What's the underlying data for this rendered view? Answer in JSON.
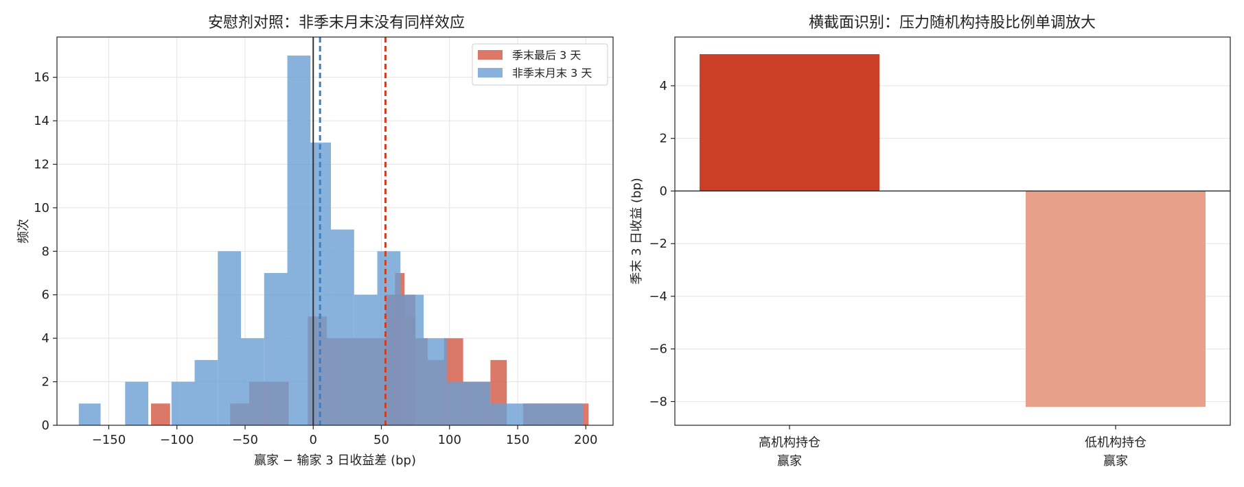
{
  "chart_data": [
    {
      "type": "histogram",
      "title": "安慰剂对照：非季末月末没有同样效应",
      "xlabel": "赢家 − 输家 3 日收益差 (bp)",
      "ylabel": "频次",
      "xlim": [
        -188,
        220
      ],
      "ylim": [
        0,
        17.85
      ],
      "xticks": [
        -150,
        -100,
        -50,
        0,
        50,
        100,
        150,
        200
      ],
      "yticks": [
        0,
        2,
        4,
        6,
        8,
        10,
        12,
        14,
        16
      ],
      "grid": true,
      "legend_position": "top-right",
      "vline_zero": 0,
      "series": [
        {
          "name": "季末最后 3 天",
          "color": "#d6604d",
          "mean_line": 53,
          "bins": [
            [
              -119,
              -105,
              1
            ],
            [
              -61,
              -47,
              1
            ],
            [
              -47,
              -18,
              2
            ],
            [
              -4,
              10,
              5
            ],
            [
              10,
              53,
              4
            ],
            [
              53,
              67,
              6
            ],
            [
              53,
              67,
              6
            ],
            [
              67,
              75,
              6
            ],
            [
              53,
              60,
              5
            ],
            [
              60,
              67,
              7
            ],
            [
              67,
              75,
              5
            ],
            [
              75,
              84,
              4
            ],
            [
              84,
              96,
              3
            ],
            [
              96,
              110,
              4
            ],
            [
              110,
              130,
              2
            ],
            [
              130,
              142,
              3
            ],
            [
              142,
              154,
              0
            ],
            [
              154,
              166,
              1
            ],
            [
              166,
              182,
              1
            ],
            [
              182,
              200,
              1
            ],
            [
              200,
              202,
              1
            ]
          ]
        },
        {
          "name": "非季末月末 3 天",
          "color": "#6a9fd2",
          "mean_line": 5,
          "bins": [
            [
              -172,
              -156,
              1
            ],
            [
              -138,
              -121,
              2
            ],
            [
              -104,
              -87,
              2
            ],
            [
              -87,
              -70,
              3
            ],
            [
              -70,
              -53,
              8
            ],
            [
              -53,
              -36,
              4
            ],
            [
              -36,
              -19,
              7
            ],
            [
              -19,
              -2,
              17
            ],
            [
              -2,
              13,
              13
            ],
            [
              13,
              30,
              9
            ],
            [
              30,
              47,
              6
            ],
            [
              47,
              64,
              8
            ],
            [
              64,
              81,
              6
            ],
            [
              81,
              98,
              4
            ],
            [
              98,
              115,
              2
            ],
            [
              115,
              130,
              2
            ],
            [
              130,
              149,
              1
            ],
            [
              149,
              164,
              1
            ],
            [
              164,
              181,
              1
            ],
            [
              181,
              198,
              1
            ]
          ]
        }
      ]
    },
    {
      "type": "bar",
      "title": "横截面识别：压力随机构持股比例单调放大",
      "ylabel": "季末 3 日收益 (bp)",
      "categories": [
        "高机构持仓\n赢家",
        "低机构持仓\n赢家"
      ],
      "values": [
        5.2,
        -8.2
      ],
      "colors": [
        "#cc3f27",
        "#e8a08a"
      ],
      "ylim": [
        -8.9,
        5.85
      ],
      "yticks": [
        4,
        2,
        0,
        -2,
        -4,
        -6,
        -8
      ],
      "grid": true
    }
  ]
}
